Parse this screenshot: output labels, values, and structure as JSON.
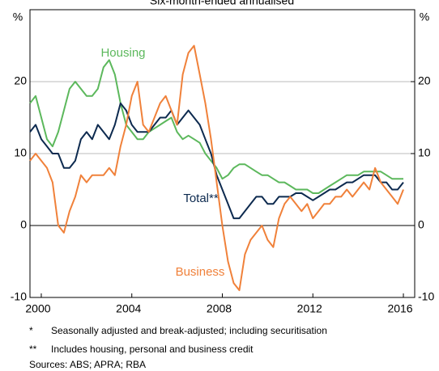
{
  "chart_data": {
    "type": "line",
    "title": "Six-month-ended annualised",
    "y_unit": "%",
    "y2_unit": "%",
    "x": [
      2000,
      2000.25,
      2000.5,
      2000.75,
      2001,
      2001.25,
      2001.5,
      2001.75,
      2002,
      2002.25,
      2002.5,
      2002.75,
      2003,
      2003.25,
      2003.5,
      2003.75,
      2004,
      2004.25,
      2004.5,
      2004.75,
      2005,
      2005.25,
      2005.5,
      2005.75,
      2006,
      2006.25,
      2006.5,
      2006.75,
      2007,
      2007.25,
      2007.5,
      2007.75,
      2008,
      2008.25,
      2008.5,
      2008.75,
      2009,
      2009.25,
      2009.5,
      2009.75,
      2010,
      2010.25,
      2010.5,
      2010.75,
      2011,
      2011.25,
      2011.5,
      2011.75,
      2012,
      2012.25,
      2012.5,
      2012.75,
      2013,
      2013.25,
      2013.5,
      2013.75,
      2014,
      2014.25,
      2014.5,
      2014.75,
      2015,
      2015.25,
      2015.5,
      2015.75,
      2016,
      2016.25,
      2016.5
    ],
    "series": [
      {
        "name": "Housing",
        "color": "#5cb85c",
        "values": [
          17,
          18,
          15,
          12,
          11,
          13,
          16,
          19,
          20,
          19,
          18,
          18,
          19,
          22,
          23,
          21,
          17,
          14,
          13,
          12,
          12,
          13,
          13.5,
          14,
          14.5,
          15,
          13,
          12,
          12.5,
          12,
          11.5,
          10,
          9,
          8,
          6.5,
          7,
          8,
          8.5,
          8.5,
          8,
          7.5,
          7,
          7,
          6.5,
          6,
          6,
          5.5,
          5,
          5,
          5,
          4.5,
          4.5,
          5,
          5.5,
          6,
          6.5,
          7,
          7,
          7,
          7.5,
          7.5,
          7.5,
          7.5,
          7,
          6.5,
          6.5,
          6.5
        ]
      },
      {
        "name": "Total**",
        "color": "#0d2a4f",
        "values": [
          13,
          14,
          12,
          11,
          10,
          10,
          8,
          8,
          9,
          12,
          13,
          12,
          14,
          13,
          12,
          14,
          17,
          16,
          14,
          13,
          13,
          13,
          14,
          15,
          15,
          16,
          14,
          15,
          16,
          15,
          14,
          12,
          10,
          7,
          5,
          3,
          1,
          1,
          2,
          3,
          4,
          4,
          3,
          3,
          4,
          4,
          4,
          4.5,
          4.5,
          4,
          3.5,
          4,
          4.5,
          5,
          5,
          5.5,
          6,
          6,
          6.5,
          7,
          7,
          7,
          6,
          6,
          5,
          5,
          6
        ]
      },
      {
        "name": "Business",
        "color": "#f0813a",
        "values": [
          9,
          10,
          9,
          8,
          6,
          0,
          -1,
          2,
          4,
          7,
          6,
          7,
          7,
          7,
          8,
          7,
          11,
          14,
          18,
          20,
          14,
          13,
          15,
          17,
          18,
          16,
          14,
          21,
          24,
          25,
          21,
          17,
          12,
          6,
          0,
          -5,
          -8,
          -9,
          -4,
          -2,
          -1,
          0,
          -2,
          -3,
          1,
          3,
          4,
          3,
          2,
          3,
          1,
          2,
          3,
          3,
          4,
          4,
          5,
          4,
          5,
          6,
          5,
          8,
          6,
          5,
          4,
          3,
          5
        ]
      }
    ],
    "xlim": [
      2000,
      2017
    ],
    "xticks": [
      {
        "value": 2000.5,
        "label": "2000"
      },
      {
        "value": 2004.5,
        "label": "2004"
      },
      {
        "value": 2008.5,
        "label": "2008"
      },
      {
        "value": 2012.5,
        "label": "2012"
      },
      {
        "value": 2016.5,
        "label": "2016"
      }
    ],
    "ylim": [
      -10,
      30
    ],
    "yticks": [
      -10,
      0,
      10,
      20
    ],
    "y2lim": [
      -10,
      30
    ],
    "y2ticks": [
      -10,
      0,
      10,
      20
    ],
    "grid": true,
    "footnotes": [
      {
        "marker": "*",
        "text": "Seasonally adjusted and break-adjusted; including securitisation"
      },
      {
        "marker": "**",
        "text": "Includes housing, personal and business credit"
      }
    ],
    "sources": "Sources:  ABS; APRA; RBA"
  }
}
